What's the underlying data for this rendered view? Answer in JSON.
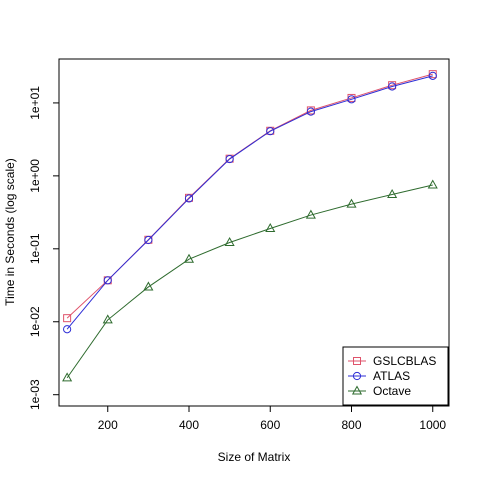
{
  "chart_data": {
    "type": "line",
    "xlabel": "Size of Matrix",
    "ylabel": "Time in Seconds (log scale)",
    "x": [
      100,
      200,
      300,
      400,
      500,
      600,
      700,
      800,
      900,
      1000
    ],
    "x_ticks": [
      200,
      400,
      600,
      800,
      1000
    ],
    "y_ticks": [
      0.001,
      0.01,
      0.1,
      1,
      10
    ],
    "y_tick_labels": [
      "1e-03",
      "1e-02",
      "1e-01",
      "1e+00",
      "1e+01"
    ],
    "xlim": [
      80,
      1040
    ],
    "ylim": [
      0.0007,
      40
    ],
    "y_scale": "log",
    "grid": false,
    "legend_position": "bottom-right",
    "series": [
      {
        "name": "GSLCBLAS",
        "color": "#DF536B",
        "marker": "square",
        "values": [
          0.0112,
          0.037,
          0.133,
          0.5,
          1.72,
          4.15,
          7.9,
          11.7,
          17.5,
          24.8
        ]
      },
      {
        "name": "ATLAS",
        "color": "#2E2ED6",
        "marker": "circle",
        "values": [
          0.0079,
          0.037,
          0.132,
          0.49,
          1.7,
          4.1,
          7.6,
          11.2,
          16.8,
          23.5
        ]
      },
      {
        "name": "Octave",
        "color": "#2E6B2E",
        "marker": "triangle",
        "values": [
          0.0017,
          0.0106,
          0.03,
          0.072,
          0.122,
          0.19,
          0.29,
          0.41,
          0.555,
          0.75
        ]
      }
    ]
  }
}
